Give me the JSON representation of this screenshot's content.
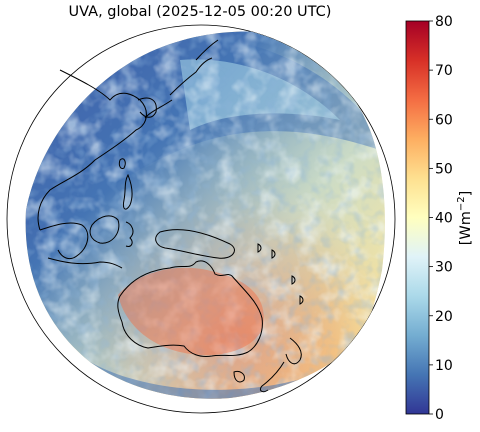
{
  "title": "UVA, global (2025-12-05 00:20 UTC)",
  "colorbar": {
    "ticks": [
      "0",
      "10",
      "20",
      "30",
      "40",
      "50",
      "60",
      "70",
      "80"
    ],
    "unit_prefix": "[Wm",
    "unit_exp": "−2",
    "unit_suffix": "]",
    "range": [
      0,
      80
    ],
    "colormap": [
      "#313695",
      "#4575b4",
      "#74add1",
      "#abd9e9",
      "#e0f3f8",
      "#ffffbf",
      "#fee090",
      "#fdae61",
      "#f46d43",
      "#d73027",
      "#a50026"
    ]
  },
  "map": {
    "projection": "orthographic (geostationary disk)",
    "regions_visible": [
      "East Asia",
      "Japan",
      "Southeast Asia",
      "Indonesia",
      "Papua New Guinea",
      "Australia",
      "New Zealand",
      "Western Pacific Ocean"
    ],
    "coastline_color": "#000000",
    "boundary_color": "#000000"
  }
}
